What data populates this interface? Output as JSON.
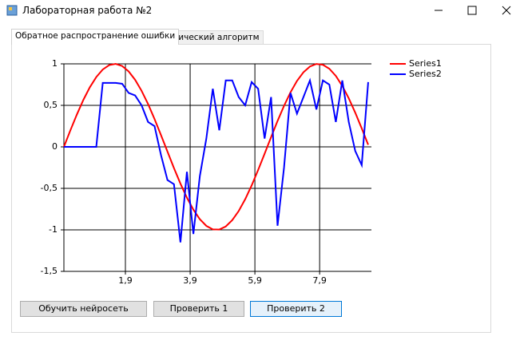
{
  "window": {
    "title": "Лабораторная работа №2"
  },
  "tabs": [
    "Обратное распространение ошибки",
    "Генетический алгоритм"
  ],
  "buttons": [
    "Обучить нейросеть",
    "Проверить 1",
    "Проверить 2"
  ],
  "chart_data": {
    "type": "line",
    "x": [
      0,
      0.2,
      0.4,
      0.6,
      0.8,
      1.0,
      1.2,
      1.4,
      1.6,
      1.8,
      2.0,
      2.2,
      2.4,
      2.6,
      2.8,
      3.0,
      3.2,
      3.4,
      3.6,
      3.8,
      4.0,
      4.2,
      4.4,
      4.6,
      4.8,
      5.0,
      5.2,
      5.4,
      5.6,
      5.8,
      6.0,
      6.2,
      6.4,
      6.6,
      6.8,
      7.0,
      7.2,
      7.4,
      7.6,
      7.8,
      8.0,
      8.2,
      8.4,
      8.6,
      8.8,
      9.0,
      9.2,
      9.4
    ],
    "series": [
      {
        "name": "Series1",
        "color": "#ff0000",
        "values": [
          0,
          0.199,
          0.389,
          0.565,
          0.717,
          0.841,
          0.932,
          0.985,
          1.0,
          0.974,
          0.909,
          0.808,
          0.675,
          0.516,
          0.335,
          0.141,
          -0.058,
          -0.256,
          -0.443,
          -0.612,
          -0.757,
          -0.872,
          -0.952,
          -0.994,
          -0.996,
          -0.959,
          -0.883,
          -0.773,
          -0.631,
          -0.465,
          -0.279,
          -0.083,
          0.117,
          0.312,
          0.494,
          0.657,
          0.794,
          0.899,
          0.968,
          0.999,
          0.989,
          0.941,
          0.855,
          0.734,
          0.585,
          0.412,
          0.223,
          0.025
        ]
      },
      {
        "name": "Series2",
        "color": "#0000ff",
        "values": [
          0,
          0,
          0,
          0,
          0,
          0,
          0.77,
          0.77,
          0.77,
          0.76,
          0.65,
          0.62,
          0.5,
          0.3,
          0.25,
          -0.1,
          -0.4,
          -0.45,
          -1.15,
          -0.3,
          -1.05,
          -0.35,
          0.1,
          0.7,
          0.2,
          0.8,
          0.8,
          0.6,
          0.5,
          0.78,
          0.7,
          0.1,
          0.6,
          -0.95,
          -0.25,
          0.65,
          0.4,
          0.6,
          0.8,
          0.45,
          0.8,
          0.75,
          0.3,
          0.8,
          0.3,
          -0.05,
          -0.22,
          0.78
        ]
      }
    ],
    "xlim": [
      0,
      9.5
    ],
    "xticks": [
      {
        "value": 1.9,
        "label": "1,9"
      },
      {
        "value": 3.9,
        "label": "3,9"
      },
      {
        "value": 5.9,
        "label": "5,9"
      },
      {
        "value": 7.9,
        "label": "7,9"
      }
    ],
    "ylim": [
      -1.5,
      1
    ],
    "yticks": [
      {
        "value": -1.5,
        "label": "-1,5"
      },
      -1,
      {
        "value": -0.5,
        "label": "-0,5"
      },
      0,
      {
        "value": 0.5,
        "label": "0,5"
      },
      1
    ],
    "grid": true,
    "legend": "right"
  }
}
